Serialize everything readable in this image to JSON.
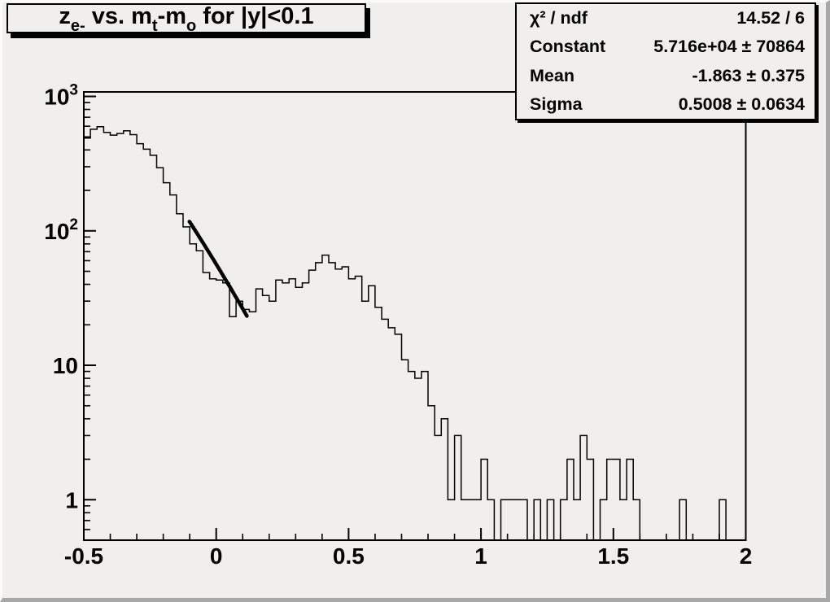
{
  "canvas": {
    "colors": {
      "background": "#f0efed",
      "bevel_light": "#fbfbfa",
      "bevel_dark": "#a8a8a8",
      "line": "#000000"
    }
  },
  "title_box": {
    "segments": [
      {
        "t": "z",
        "sub": false
      },
      {
        "t": "e-",
        "sub": true
      },
      {
        "t": " vs. m",
        "sub": false
      },
      {
        "t": "t",
        "sub": true
      },
      {
        "t": "-m",
        "sub": false
      },
      {
        "t": "o",
        "sub": true
      },
      {
        "t": " for |y|<0.1",
        "sub": false
      }
    ]
  },
  "stats_box": {
    "rows": [
      {
        "label": "χ² / ndf",
        "value": "14.52 / 6"
      },
      {
        "label": "Constant",
        "value": "5.716e+04 ± 70864"
      },
      {
        "label": "Mean",
        "value": "-1.863 ± 0.375"
      },
      {
        "label": "Sigma",
        "value": "0.5008 ± 0.0634"
      }
    ]
  },
  "chart_data": {
    "type": "bar",
    "title": "z_{e-} vs. m_{t}-m_{o} for |y|<0.1",
    "xlabel": "",
    "ylabel": "",
    "grid": false,
    "legend": "stats box top-right",
    "x_axis": {
      "min": -0.5,
      "max": 2.0,
      "major_ticks": [
        -0.5,
        0,
        0.5,
        1,
        1.5,
        2
      ],
      "tick_labels": [
        "-0.5",
        "0",
        "0.5",
        "1",
        "1.5",
        "2"
      ],
      "minor_step": 0.1
    },
    "y_axis": {
      "scale": "log",
      "min": 0.5,
      "max": 1080,
      "tick_values": [
        1,
        10,
        100,
        1000
      ],
      "tick_labels": [
        {
          "base": "1",
          "exp": ""
        },
        {
          "base": "10",
          "exp": ""
        },
        {
          "base": "10",
          "exp": "2"
        },
        {
          "base": "10",
          "exp": "3"
        }
      ]
    },
    "bins": {
      "start": -0.5,
      "width": 0.025,
      "counts": [
        490,
        570,
        595,
        540,
        515,
        530,
        555,
        520,
        445,
        405,
        365,
        295,
        228,
        185,
        134,
        107,
        80,
        71,
        49,
        44,
        43,
        41,
        23,
        30,
        26,
        25,
        37,
        33,
        30,
        43,
        41,
        44,
        38,
        41,
        51,
        58,
        66,
        58,
        52,
        54,
        44,
        46,
        30,
        39,
        27,
        22,
        19,
        17,
        11,
        9,
        8,
        9,
        5,
        3,
        4,
        1,
        3,
        1,
        1,
        1,
        2,
        1,
        0,
        1,
        1,
        1,
        1,
        0,
        1,
        0,
        1,
        0,
        1,
        2,
        1,
        3,
        2,
        0,
        1,
        2,
        2,
        1,
        2,
        1,
        0,
        0,
        0,
        0,
        0,
        0,
        1,
        0,
        0,
        0,
        0,
        0,
        1,
        0,
        0,
        0
      ]
    },
    "fit": {
      "type": "gaussian",
      "constant": 57160,
      "mean": -1.863,
      "sigma": 0.5008,
      "draw_range": [
        -0.101,
        0.116
      ]
    }
  }
}
